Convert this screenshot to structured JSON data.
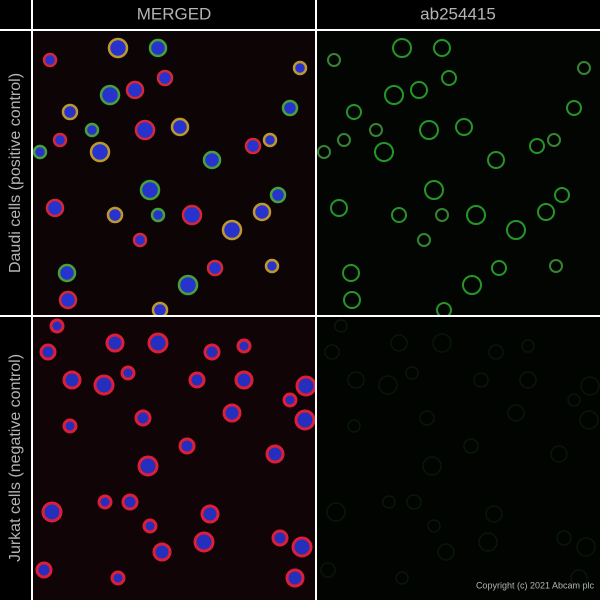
{
  "header": {
    "columns": [
      "MERGED",
      "ab254415"
    ]
  },
  "rows": [
    {
      "label": "Daudi cells (positive control)"
    },
    {
      "label": "Jurkat cells (negative control)"
    }
  ],
  "footer": {
    "copyright": "Copyright (c) 2021 Abcam plc"
  }
}
